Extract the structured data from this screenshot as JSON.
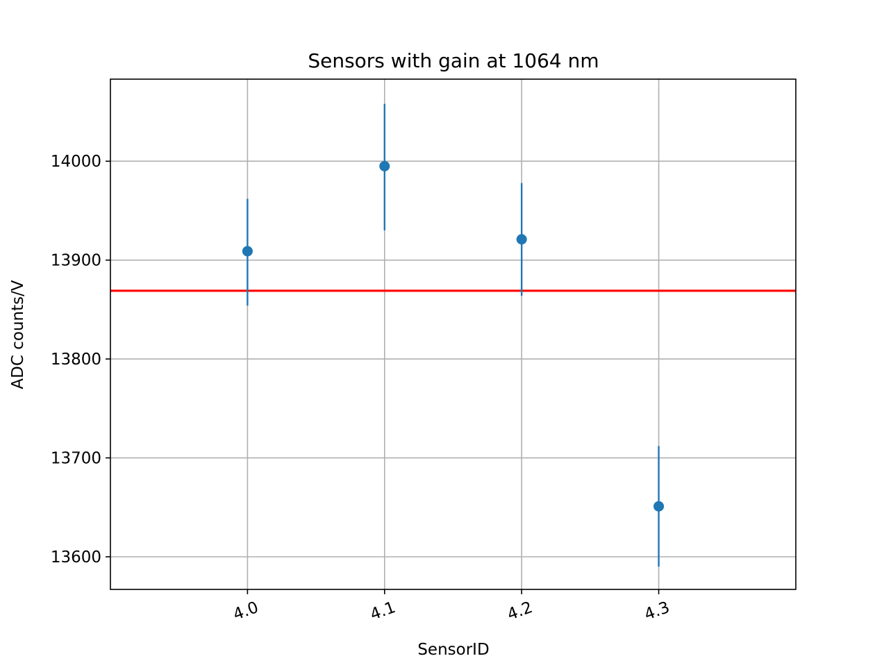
{
  "chart_data": {
    "type": "scatter",
    "title": "Sensors with gain at 1064 nm",
    "xlabel": "SensorID",
    "ylabel": "ADC counts/V",
    "xlim": [
      3.9,
      4.4
    ],
    "ylim": [
      13567,
      14083
    ],
    "x_ticks": [
      "4.0",
      "4.1",
      "4.2",
      "4.3"
    ],
    "y_ticks": [
      13600,
      13700,
      13800,
      13900,
      14000
    ],
    "grid": true,
    "x": [
      4.0,
      4.1,
      4.2,
      4.3
    ],
    "y": [
      13909,
      13995,
      13921,
      13651
    ],
    "yerr_low": [
      13854,
      13930,
      13864,
      13590
    ],
    "yerr_high": [
      13962,
      14058,
      13978,
      13712
    ],
    "reference_line_y": 13869,
    "colors": {
      "points": "#1f77b4",
      "reference_line": "#ff0000",
      "grid": "#b0b0b0"
    }
  }
}
